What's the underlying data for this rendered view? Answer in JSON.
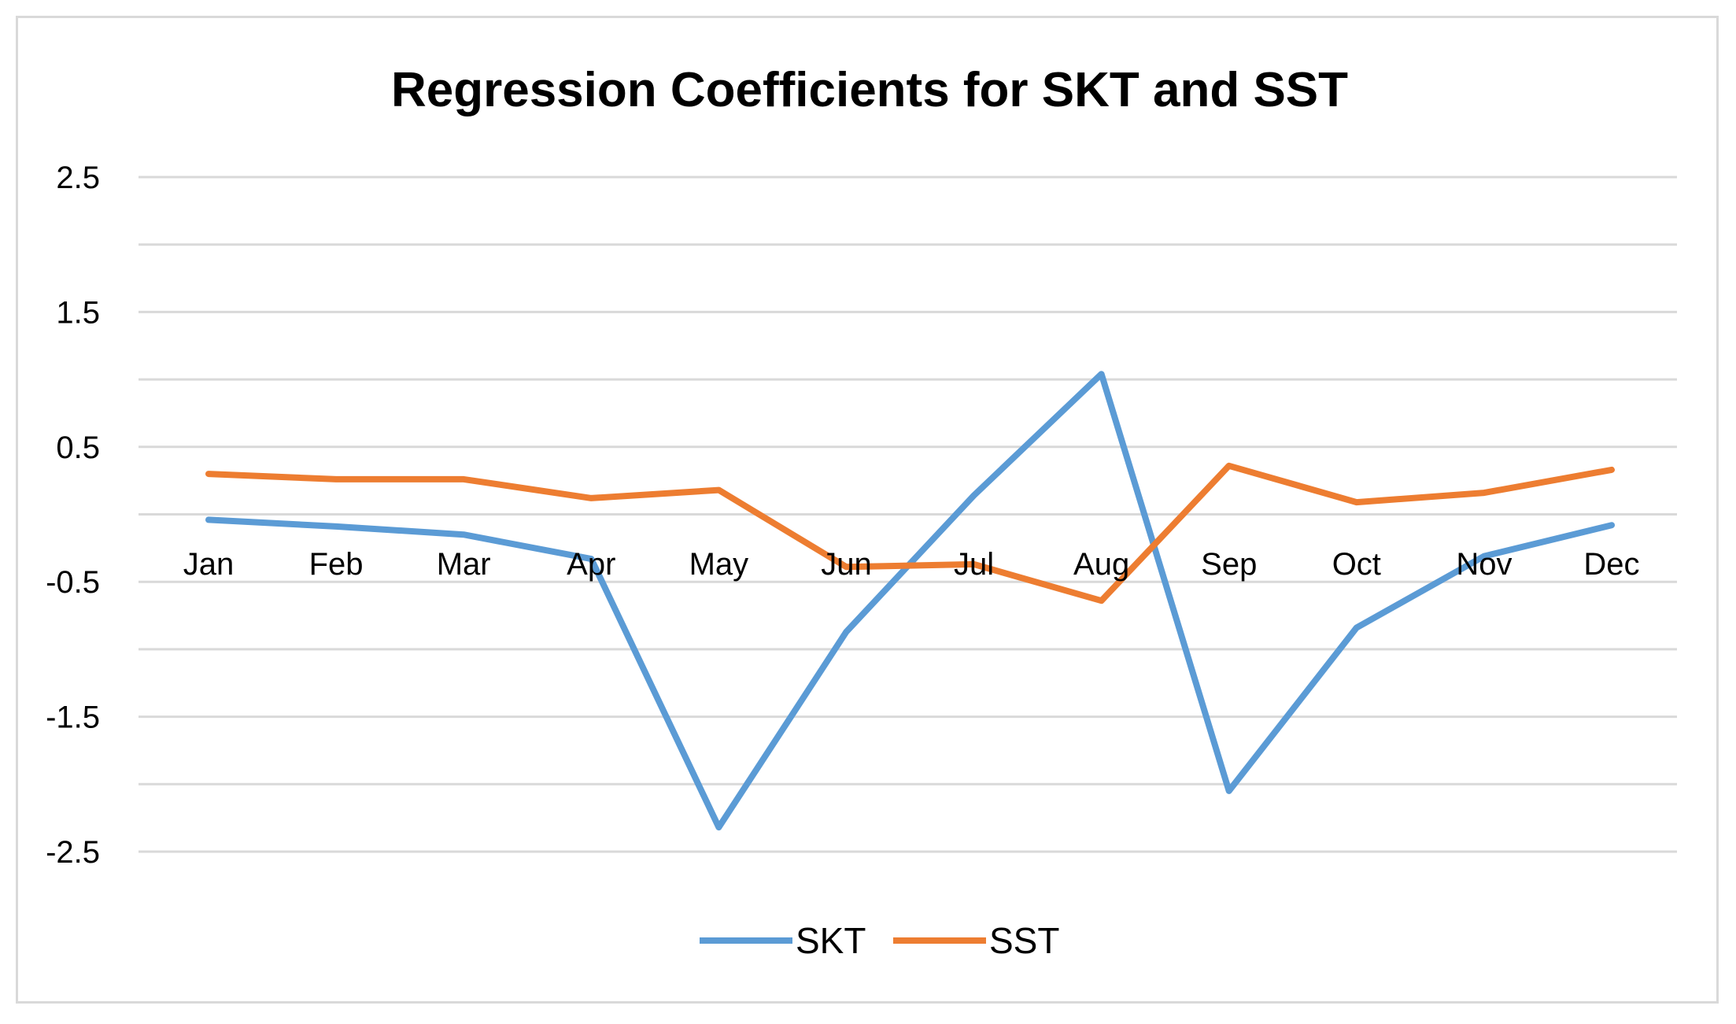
{
  "chart_data": {
    "type": "line",
    "title": "Regression Coefficients for SKT and SST",
    "xlabel": "",
    "ylabel": "",
    "categories": [
      "Jan",
      "Feb",
      "Mar",
      "Apr",
      "May",
      "Jun",
      "Jul",
      "Aug",
      "Sep",
      "Oct",
      "Nov",
      "Dec"
    ],
    "y_ticks": [
      "2.5",
      "1.5",
      "0.5",
      "-0.5",
      "-1.5",
      "-2.5"
    ],
    "ylim": [
      -2.5,
      2.5
    ],
    "y_tick_step": 1,
    "grid": true,
    "legend_position": "bottom",
    "series": [
      {
        "name": "SKT",
        "color": "#5b9bd5",
        "values": [
          -0.04,
          -0.09,
          -0.15,
          -0.33,
          -2.32,
          -0.87,
          0.14,
          1.04,
          -2.05,
          -0.84,
          -0.31,
          -0.08
        ]
      },
      {
        "name": "SST",
        "color": "#ed7d31",
        "values": [
          0.3,
          0.26,
          0.26,
          0.12,
          0.18,
          -0.39,
          -0.37,
          -0.64,
          0.36,
          0.09,
          0.16,
          0.33
        ]
      }
    ]
  }
}
